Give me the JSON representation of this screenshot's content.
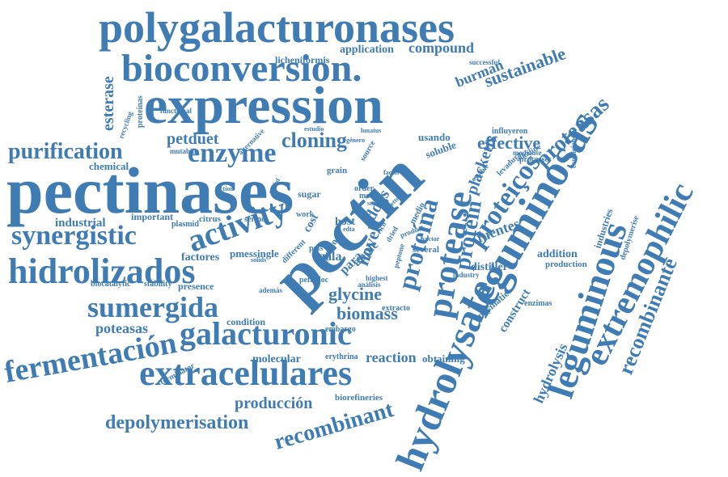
{
  "colors": {
    "word": "#3f7cb3",
    "background": "#ffffff"
  },
  "words": [
    {
      "text": "polygalacturonases"
    },
    {
      "text": "bioconversion."
    },
    {
      "text": "expression"
    },
    {
      "text": "pectinases"
    },
    {
      "text": "pectin"
    },
    {
      "text": "enzyme"
    },
    {
      "text": "purification"
    },
    {
      "text": "cloning"
    },
    {
      "text": "synergistic"
    },
    {
      "text": "activity"
    },
    {
      "text": "hidrolizados"
    },
    {
      "text": "sumergida"
    },
    {
      "text": "fermentación"
    },
    {
      "text": "galacturonic"
    },
    {
      "text": "extracelulares"
    },
    {
      "text": "depolymerisation"
    },
    {
      "text": "recombinant"
    },
    {
      "text": "hydrolysate."
    },
    {
      "text": "leguminosas"
    },
    {
      "text": "leguminous"
    },
    {
      "text": "extremophilic"
    },
    {
      "text": "recombinante"
    },
    {
      "text": "proteína"
    },
    {
      "text": "protein"
    },
    {
      "text": "protease"
    },
    {
      "text": "proteasas"
    },
    {
      "text": "proteiços"
    },
    {
      "text": "sustainable"
    },
    {
      "text": "burman"
    },
    {
      "text": "compound"
    },
    {
      "text": "application"
    },
    {
      "text": "licheniformis"
    },
    {
      "text": "esterase"
    },
    {
      "text": "petduet"
    },
    {
      "text": "chemical"
    },
    {
      "text": "industrial"
    },
    {
      "text": "important"
    },
    {
      "text": "factores"
    },
    {
      "text": "biocatalytic"
    },
    {
      "text": "stability"
    },
    {
      "text": "presence"
    },
    {
      "text": "poteasas"
    },
    {
      "text": "condition"
    },
    {
      "text": "molecular"
    },
    {
      "text": "producción"
    },
    {
      "text": "biorefineries"
    },
    {
      "text": "glycine"
    },
    {
      "text": "biomass"
    },
    {
      "text": "reaction"
    },
    {
      "text": "obtaining"
    },
    {
      "text": "effective"
    },
    {
      "text": "placketts"
    },
    {
      "text": "fuentes"
    },
    {
      "text": "distiller"
    },
    {
      "text": "addition"
    },
    {
      "text": "production"
    },
    {
      "text": "industries"
    },
    {
      "text": "depolymerise"
    },
    {
      "text": "hydrolysis"
    },
    {
      "text": "construct"
    },
    {
      "text": "enzymatic"
    },
    {
      "text": "terminator"
    },
    {
      "text": "usando"
    },
    {
      "text": "ddgs"
    },
    {
      "text": "novel"
    },
    {
      "text": "gala"
    },
    {
      "text": "pmessingle"
    },
    {
      "text": "citrus"
    },
    {
      "text": "plasmid"
    },
    {
      "text": "serine"
    },
    {
      "text": "host"
    },
    {
      "text": "sugar"
    },
    {
      "text": "grain"
    },
    {
      "text": "order"
    },
    {
      "text": "most"
    },
    {
      "text": "cost"
    },
    {
      "text": "medio"
    },
    {
      "text": "soluble"
    },
    {
      "text": "apple"
    },
    {
      "text": "para"
    },
    {
      "text": "extracto"
    },
    {
      "text": "embargo"
    },
    {
      "text": "pefabloc"
    },
    {
      "text": "además"
    },
    {
      "text": "highest"
    },
    {
      "text": "análisis"
    },
    {
      "text": "erythrina"
    },
    {
      "text": "several"
    },
    {
      "text": "industry"
    },
    {
      "text": "enzimas"
    },
    {
      "text": "alkaline"
    },
    {
      "text": "processes"
    },
    {
      "text": "mediante"
    },
    {
      "text": "influyeron"
    },
    {
      "text": "condiciones"
    },
    {
      "text": "levadura"
    },
    {
      "text": "successful"
    },
    {
      "text": "functional"
    },
    {
      "text": "recycling"
    },
    {
      "text": "proteínas"
    },
    {
      "text": "mutabilis"
    },
    {
      "text": "alternative"
    },
    {
      "text": "estudio"
    },
    {
      "text": "lunatus"
    },
    {
      "text": "género"
    },
    {
      "text": "source"
    },
    {
      "text": "factor"
    },
    {
      "text": "pgls"
    },
    {
      "text": "work"
    },
    {
      "text": "como"
    },
    {
      "text": "different"
    },
    {
      "text": "peptone"
    },
    {
      "text": "dried"
    },
    {
      "text": "rich"
    },
    {
      "text": "product"
    },
    {
      "text": "estable"
    },
    {
      "text": "vector"
    },
    {
      "text": "action"
    },
    {
      "text": "useful"
    },
    {
      "text": "solids"
    },
    {
      "text": "edta"
    },
    {
      "text": "study"
    },
    {
      "text": "better"
    }
  ]
}
